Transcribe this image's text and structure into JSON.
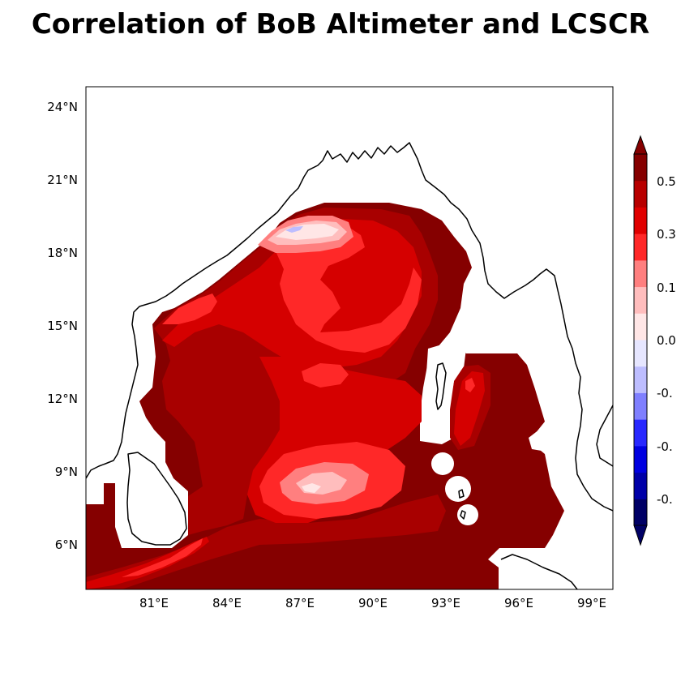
{
  "title": "Correlation of BoB Altimeter and LCSCR",
  "map": {
    "lat_ticks": [
      "24°N",
      "21°N",
      "18°N",
      "15°N",
      "12°N",
      "9°N",
      "6°N"
    ],
    "lon_ticks": [
      "81°E",
      "84°E",
      "87°E",
      "90°E",
      "93°E",
      "96°E",
      "99°E"
    ],
    "extent": {
      "lon": [
        78.2,
        99.9
      ],
      "lat": [
        4.0,
        24.7
      ]
    }
  },
  "colorbar": {
    "labels": [
      "0.5",
      "0.3",
      "0.1",
      "0.0",
      "-0.",
      "-0.",
      "-0."
    ],
    "colors": [
      "#000066",
      "#0000a8",
      "#0000e0",
      "#2828ff",
      "#7f7fff",
      "#bdbdff",
      "#e6e6ff",
      "#ffe6e6",
      "#ffbdbd",
      "#ff7f7f",
      "#ff2828",
      "#e00000",
      "#b80000",
      "#850000"
    ]
  },
  "palette": {
    "deep": "#850000",
    "dark": "#a80000",
    "mid": "#d50000",
    "bright": "#ff2828",
    "light": "#ff7f7f",
    "pale": "#ffbdbd",
    "white": "#f5f5ff",
    "blue": "#bdbdff"
  }
}
